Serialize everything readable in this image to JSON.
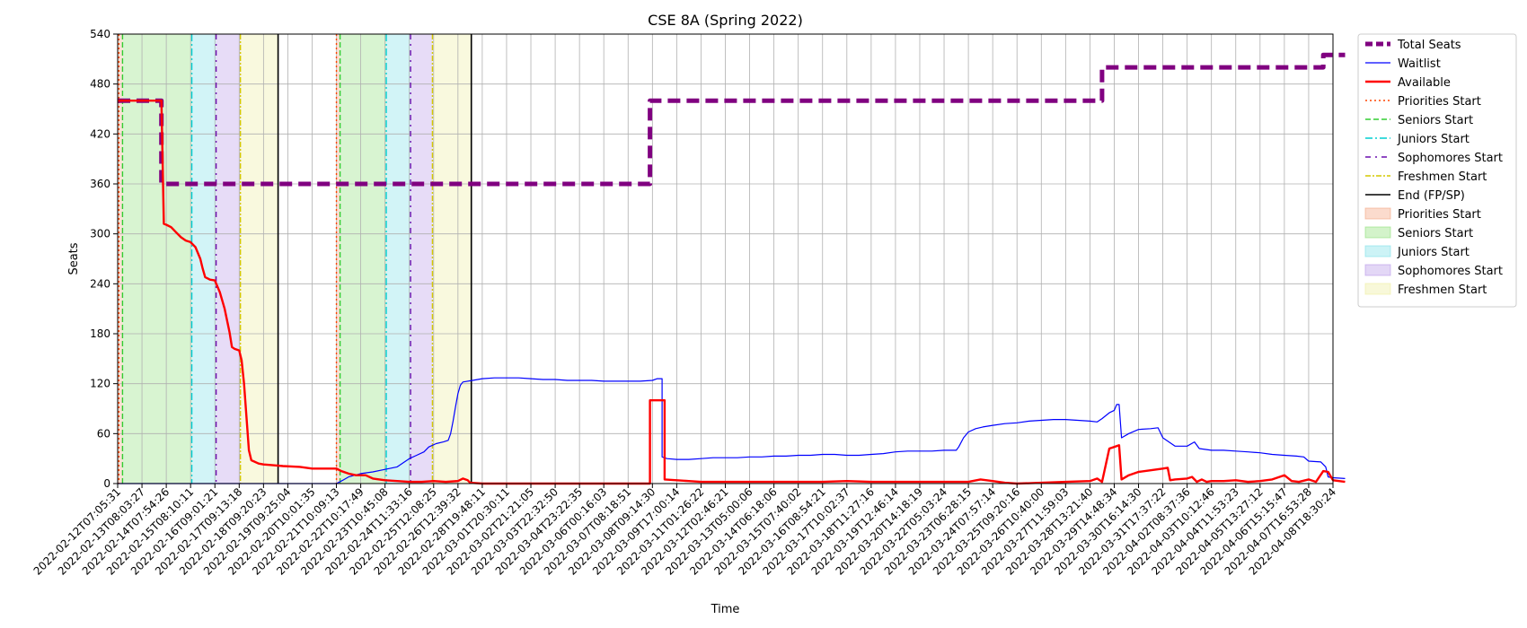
{
  "chart_data": {
    "type": "line",
    "title": "CSE 8A (Spring 2022)",
    "xlabel": "Time",
    "ylabel": "Seats",
    "ylim": [
      0,
      540
    ],
    "yticks": [
      0,
      60,
      120,
      180,
      240,
      300,
      360,
      420,
      480,
      540
    ],
    "grid": true,
    "legend_position": "outside-right",
    "x_ticks": [
      "2022-02-12T07:05:31",
      "2022-02-13T08:03:27",
      "2022-02-14T07:54:26",
      "2022-02-15T08:10:11",
      "2022-02-16T09:01:21",
      "2022-02-17T09:13:18",
      "2022-02-18T09:20:23",
      "2022-02-19T09:25:04",
      "2022-02-20T10:01:35",
      "2022-02-21T10:09:13",
      "2022-02-22T10:17:49",
      "2022-02-23T10:45:08",
      "2022-02-24T11:33:16",
      "2022-02-25T12:08:25",
      "2022-02-26T12:39:32",
      "2022-02-28T19:48:11",
      "2022-03-01T20:30:11",
      "2022-03-02T21:21:05",
      "2022-03-03T22:32:50",
      "2022-03-04T23:22:35",
      "2022-03-06T00:16:03",
      "2022-03-07T08:18:51",
      "2022-03-08T09:14:30",
      "2022-03-09T17:00:14",
      "2022-03-11T01:26:22",
      "2022-03-12T02:46:21",
      "2022-03-13T05:00:06",
      "2022-03-14T06:18:06",
      "2022-03-15T07:40:02",
      "2022-03-16T08:54:21",
      "2022-03-17T10:02:37",
      "2022-03-18T11:27:16",
      "2022-03-19T12:46:14",
      "2022-03-20T14:18:19",
      "2022-03-22T05:03:24",
      "2022-03-23T06:28:15",
      "2022-03-24T07:57:14",
      "2022-03-25T09:20:16",
      "2022-03-26T10:40:00",
      "2022-03-27T11:59:03",
      "2022-03-28T13:21:40",
      "2022-03-29T14:48:34",
      "2022-03-30T16:14:30",
      "2022-03-31T17:37:22",
      "2022-04-02T08:37:36",
      "2022-04-03T10:12:46",
      "2022-04-04T11:53:23",
      "2022-04-05T13:27:12",
      "2022-04-06T15:15:47",
      "2022-04-07T16:53:28",
      "2022-04-08T18:30:24"
    ],
    "series": [
      {
        "name": "Total Seats",
        "color": "#800080",
        "style": "dashed-thick",
        "points": [
          [
            0,
            460
          ],
          [
            1.8,
            460
          ],
          [
            1.8,
            360
          ],
          [
            21.9,
            360
          ],
          [
            21.9,
            460
          ],
          [
            40.5,
            460
          ],
          [
            40.5,
            500
          ],
          [
            49.6,
            500
          ],
          [
            49.6,
            515
          ],
          [
            50.5,
            515
          ]
        ]
      },
      {
        "name": "Waitlist",
        "color": "#0000ff",
        "style": "solid-thin",
        "points": [
          [
            0,
            0
          ],
          [
            9.0,
            0
          ],
          [
            9.2,
            3
          ],
          [
            9.5,
            8
          ],
          [
            10.0,
            12
          ],
          [
            10.5,
            14
          ],
          [
            11.0,
            17
          ],
          [
            11.5,
            20
          ],
          [
            11.8,
            26
          ],
          [
            12.0,
            30
          ],
          [
            12.3,
            34
          ],
          [
            12.6,
            38
          ],
          [
            12.8,
            44
          ],
          [
            13.1,
            48
          ],
          [
            13.4,
            50
          ],
          [
            13.6,
            52
          ],
          [
            13.7,
            60
          ],
          [
            13.8,
            75
          ],
          [
            13.9,
            92
          ],
          [
            14.0,
            108
          ],
          [
            14.1,
            118
          ],
          [
            14.2,
            122
          ],
          [
            14.6,
            124
          ],
          [
            15.0,
            126
          ],
          [
            15.5,
            127
          ],
          [
            16.0,
            127
          ],
          [
            16.5,
            127
          ],
          [
            17.0,
            126
          ],
          [
            17.5,
            125
          ],
          [
            18.0,
            125
          ],
          [
            18.5,
            124
          ],
          [
            19.0,
            124
          ],
          [
            19.5,
            124
          ],
          [
            20.0,
            123
          ],
          [
            20.5,
            123
          ],
          [
            21.0,
            123
          ],
          [
            21.5,
            123
          ],
          [
            22.0,
            124
          ],
          [
            22.2,
            126
          ],
          [
            22.4,
            126
          ],
          [
            22.4,
            32
          ],
          [
            22.6,
            30
          ],
          [
            23.0,
            29
          ],
          [
            23.5,
            29
          ],
          [
            24.0,
            30
          ],
          [
            24.5,
            31
          ],
          [
            25.0,
            31
          ],
          [
            25.5,
            31
          ],
          [
            26.0,
            32
          ],
          [
            26.5,
            32
          ],
          [
            27.0,
            33
          ],
          [
            27.5,
            33
          ],
          [
            28.0,
            34
          ],
          [
            28.5,
            34
          ],
          [
            29.0,
            35
          ],
          [
            29.5,
            35
          ],
          [
            30.0,
            34
          ],
          [
            30.5,
            34
          ],
          [
            31.0,
            35
          ],
          [
            31.5,
            36
          ],
          [
            32.0,
            38
          ],
          [
            32.5,
            39
          ],
          [
            33.0,
            39
          ],
          [
            33.5,
            39
          ],
          [
            34.0,
            40
          ],
          [
            34.5,
            40
          ],
          [
            34.6,
            44
          ],
          [
            34.8,
            55
          ],
          [
            35.0,
            62
          ],
          [
            35.3,
            66
          ],
          [
            35.6,
            68
          ],
          [
            36.0,
            70
          ],
          [
            36.5,
            72
          ],
          [
            37.0,
            73
          ],
          [
            37.5,
            75
          ],
          [
            38.0,
            76
          ],
          [
            38.5,
            77
          ],
          [
            39.0,
            77
          ],
          [
            39.5,
            76
          ],
          [
            40.0,
            75
          ],
          [
            40.3,
            74
          ],
          [
            40.5,
            78
          ],
          [
            40.8,
            85
          ],
          [
            41.0,
            88
          ],
          [
            41.1,
            95
          ],
          [
            41.2,
            95
          ],
          [
            41.3,
            55
          ],
          [
            41.6,
            60
          ],
          [
            42.0,
            65
          ],
          [
            42.5,
            66
          ],
          [
            42.8,
            67
          ],
          [
            43.0,
            55
          ],
          [
            43.5,
            45
          ],
          [
            44.0,
            45
          ],
          [
            44.3,
            50
          ],
          [
            44.5,
            42
          ],
          [
            45.0,
            40
          ],
          [
            45.5,
            40
          ],
          [
            46.0,
            39
          ],
          [
            46.5,
            38
          ],
          [
            47.0,
            37
          ],
          [
            47.5,
            35
          ],
          [
            48.0,
            34
          ],
          [
            48.5,
            33
          ],
          [
            48.8,
            32
          ],
          [
            49.0,
            27
          ],
          [
            49.5,
            26
          ],
          [
            49.7,
            20
          ],
          [
            49.8,
            8
          ],
          [
            50.0,
            7
          ],
          [
            50.5,
            6
          ]
        ]
      },
      {
        "name": "Available",
        "color": "#ff0000",
        "style": "solid-thick",
        "points": [
          [
            0,
            460
          ],
          [
            1.8,
            460
          ],
          [
            1.9,
            312
          ],
          [
            2.0,
            311
          ],
          [
            2.2,
            308
          ],
          [
            2.4,
            302
          ],
          [
            2.6,
            296
          ],
          [
            2.8,
            292
          ],
          [
            3.0,
            290
          ],
          [
            3.2,
            284
          ],
          [
            3.4,
            270
          ],
          [
            3.5,
            258
          ],
          [
            3.6,
            248
          ],
          [
            3.8,
            245
          ],
          [
            4.0,
            244
          ],
          [
            4.2,
            230
          ],
          [
            4.4,
            210
          ],
          [
            4.6,
            182
          ],
          [
            4.7,
            164
          ],
          [
            4.8,
            162
          ],
          [
            5.0,
            160
          ],
          [
            5.1,
            148
          ],
          [
            5.2,
            120
          ],
          [
            5.3,
            80
          ],
          [
            5.4,
            40
          ],
          [
            5.5,
            28
          ],
          [
            5.8,
            24
          ],
          [
            6.0,
            23
          ],
          [
            6.4,
            22
          ],
          [
            6.8,
            21
          ],
          [
            7.5,
            20
          ],
          [
            8.0,
            18
          ],
          [
            8.5,
            18
          ],
          [
            9.0,
            18
          ],
          [
            9.2,
            15
          ],
          [
            9.5,
            12
          ],
          [
            9.8,
            10
          ],
          [
            10.2,
            10
          ],
          [
            10.5,
            6
          ],
          [
            11.0,
            4
          ],
          [
            11.5,
            3
          ],
          [
            12.0,
            2
          ],
          [
            12.5,
            2
          ],
          [
            13.0,
            3
          ],
          [
            13.5,
            2
          ],
          [
            14.0,
            3
          ],
          [
            14.2,
            6
          ],
          [
            14.4,
            4
          ],
          [
            14.5,
            1
          ],
          [
            15.0,
            0
          ],
          [
            20.0,
            0
          ],
          [
            21.9,
            0
          ],
          [
            21.9,
            100
          ],
          [
            22.5,
            100
          ],
          [
            22.5,
            5
          ],
          [
            23.0,
            4
          ],
          [
            23.5,
            3
          ],
          [
            24.0,
            2
          ],
          [
            25.0,
            2
          ],
          [
            26.0,
            2
          ],
          [
            27.0,
            2
          ],
          [
            28.0,
            2
          ],
          [
            29.0,
            2
          ],
          [
            30.0,
            3
          ],
          [
            31.0,
            2
          ],
          [
            32.0,
            2
          ],
          [
            33.0,
            2
          ],
          [
            34.0,
            2
          ],
          [
            35.0,
            2
          ],
          [
            35.5,
            5
          ],
          [
            36.0,
            3
          ],
          [
            36.5,
            1
          ],
          [
            37.0,
            0
          ],
          [
            38.0,
            1
          ],
          [
            39.0,
            2
          ],
          [
            40.0,
            3
          ],
          [
            40.3,
            6
          ],
          [
            40.5,
            2
          ],
          [
            40.8,
            42
          ],
          [
            41.0,
            44
          ],
          [
            41.2,
            46
          ],
          [
            41.3,
            5
          ],
          [
            41.6,
            10
          ],
          [
            42.0,
            14
          ],
          [
            42.5,
            16
          ],
          [
            43.0,
            18
          ],
          [
            43.2,
            19
          ],
          [
            43.3,
            4
          ],
          [
            43.5,
            5
          ],
          [
            44.0,
            6
          ],
          [
            44.2,
            8
          ],
          [
            44.4,
            2
          ],
          [
            44.6,
            5
          ],
          [
            44.8,
            2
          ],
          [
            45.0,
            3
          ],
          [
            45.5,
            3
          ],
          [
            46.0,
            4
          ],
          [
            46.5,
            2
          ],
          [
            47.0,
            3
          ],
          [
            47.5,
            5
          ],
          [
            48.0,
            10
          ],
          [
            48.3,
            3
          ],
          [
            48.6,
            2
          ],
          [
            49.0,
            5
          ],
          [
            49.3,
            2
          ],
          [
            49.6,
            15
          ],
          [
            49.8,
            14
          ],
          [
            50.0,
            4
          ],
          [
            50.5,
            2
          ]
        ]
      }
    ],
    "vertical_markers": [
      {
        "name": "Priorities Start",
        "color": "#ff4500",
        "style": "dotted",
        "positions": [
          0.05,
          9.0
        ]
      },
      {
        "name": "Seniors Start",
        "color": "#32cd32",
        "style": "dashed",
        "positions": [
          0.2,
          9.15
        ]
      },
      {
        "name": "Juniors Start",
        "color": "#00ced1",
        "style": "dashdot",
        "positions": [
          3.05,
          11.05
        ]
      },
      {
        "name": "Sophomores Start",
        "color": "#6a0dad",
        "style": "dashdotted",
        "positions": [
          4.05,
          12.05
        ]
      },
      {
        "name": "Freshmen Start",
        "color": "#d4c800",
        "style": "dashdot-thin",
        "positions": [
          5.05,
          12.95
        ]
      },
      {
        "name": "End (FP/SP)",
        "color": "#000000",
        "style": "solid",
        "positions": [
          6.6,
          14.55
        ]
      }
    ],
    "shaded_regions": [
      {
        "name": "Priorities Start",
        "color": "#f4a582",
        "spans": [
          [
            0.0,
            0.2
          ],
          [
            9.0,
            9.15
          ]
        ]
      },
      {
        "name": "Seniors Start",
        "color": "#90e07a",
        "spans": [
          [
            0.2,
            3.05
          ],
          [
            9.15,
            11.05
          ]
        ]
      },
      {
        "name": "Juniors Start",
        "color": "#7fe0e8",
        "spans": [
          [
            3.05,
            4.05
          ],
          [
            11.05,
            12.05
          ]
        ]
      },
      {
        "name": "Sophomores Start",
        "color": "#b99ae8",
        "spans": [
          [
            4.05,
            5.05
          ],
          [
            12.05,
            12.95
          ]
        ]
      },
      {
        "name": "Freshmen Start",
        "color": "#eeeea0",
        "spans": [
          [
            5.05,
            6.6
          ],
          [
            12.95,
            14.55
          ]
        ]
      }
    ]
  }
}
